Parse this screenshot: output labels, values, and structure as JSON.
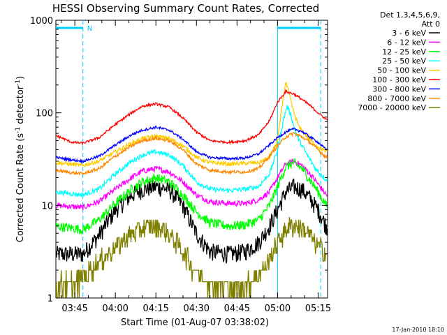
{
  "chart_data": {
    "type": "line",
    "title": "HESSI Observing Summary Count Rates, Corrected",
    "xlabel": "Start Time (01-Aug-07 03:38:02)",
    "ylabel": "Corrected Count Rate (s",
    "ylabel_sup1": "-1",
    "ylabel_mid": " detector",
    "ylabel_sup2": "-1",
    "ylabel_end": ")",
    "yscale": "log",
    "ylim": [
      1,
      1000
    ],
    "xlim_minutes": [
      218,
      318.5
    ],
    "x_ticks": [
      {
        "label": "03:45",
        "minutes": 225
      },
      {
        "label": "04:00",
        "minutes": 240
      },
      {
        "label": "04:15",
        "minutes": 255
      },
      {
        "label": "04:30",
        "minutes": 270
      },
      {
        "label": "04:45",
        "minutes": 285
      },
      {
        "label": "05:00",
        "minutes": 300
      },
      {
        "label": "05:15",
        "minutes": 315
      }
    ],
    "y_ticks": [
      {
        "label": "1",
        "value": 1
      },
      {
        "label": "10",
        "value": 10
      },
      {
        "label": "100",
        "value": 100
      },
      {
        "label": "1000",
        "value": 1000
      }
    ],
    "legend_header": [
      "Det 1,3,4,5,6,9,",
      "Att 0"
    ],
    "legend_position": "top-right outside plot",
    "series": [
      {
        "name": "3 - 6 keV",
        "color": "#000000",
        "points": [
          [
            218,
            3.0
          ],
          [
            228,
            3.0
          ],
          [
            234,
            4.8
          ],
          [
            240,
            9
          ],
          [
            246,
            13
          ],
          [
            250,
            15
          ],
          [
            255,
            16
          ],
          [
            260,
            15
          ],
          [
            265,
            10
          ],
          [
            270,
            5
          ],
          [
            275,
            3.2
          ],
          [
            282,
            3.0
          ],
          [
            288,
            3.2
          ],
          [
            293,
            4
          ],
          [
            297,
            6
          ],
          [
            300,
            9
          ],
          [
            303,
            14
          ],
          [
            306,
            16
          ],
          [
            309,
            15
          ],
          [
            312,
            12
          ],
          [
            315,
            9
          ],
          [
            318,
            6
          ]
        ]
      },
      {
        "name": "6 - 12 keV",
        "color": "#ff00ff",
        "points": [
          [
            218,
            10
          ],
          [
            228,
            9.5
          ],
          [
            234,
            11
          ],
          [
            240,
            15
          ],
          [
            246,
            20
          ],
          [
            250,
            23.5
          ],
          [
            255,
            25
          ],
          [
            260,
            23
          ],
          [
            265,
            18
          ],
          [
            270,
            13
          ],
          [
            275,
            11
          ],
          [
            282,
            10.5
          ],
          [
            288,
            10.5
          ],
          [
            293,
            11.5
          ],
          [
            297,
            14
          ],
          [
            300,
            20
          ],
          [
            303,
            28
          ],
          [
            306,
            30
          ],
          [
            309,
            27
          ],
          [
            312,
            22
          ],
          [
            315,
            17
          ],
          [
            318,
            13
          ]
        ]
      },
      {
        "name": "12 - 25 keV",
        "color": "#00ff00",
        "points": [
          [
            218,
            6
          ],
          [
            228,
            5.5
          ],
          [
            234,
            7
          ],
          [
            240,
            10.5
          ],
          [
            246,
            15
          ],
          [
            250,
            18
          ],
          [
            255,
            20
          ],
          [
            260,
            18
          ],
          [
            265,
            13
          ],
          [
            270,
            8.5
          ],
          [
            275,
            6.5
          ],
          [
            282,
            6
          ],
          [
            288,
            6.2
          ],
          [
            293,
            7
          ],
          [
            297,
            10
          ],
          [
            300,
            16
          ],
          [
            303,
            26
          ],
          [
            306,
            29
          ],
          [
            309,
            25
          ],
          [
            312,
            19
          ],
          [
            315,
            14
          ],
          [
            318,
            10
          ]
        ]
      },
      {
        "name": "25 - 50 keV",
        "color": "#00ffff",
        "points": [
          [
            218,
            14
          ],
          [
            228,
            13
          ],
          [
            234,
            15
          ],
          [
            240,
            22
          ],
          [
            246,
            30
          ],
          [
            250,
            35
          ],
          [
            255,
            38
          ],
          [
            260,
            35
          ],
          [
            265,
            27
          ],
          [
            270,
            18
          ],
          [
            275,
            15
          ],
          [
            282,
            14.5
          ],
          [
            288,
            15
          ],
          [
            293,
            16
          ],
          [
            297,
            22
          ],
          [
            300,
            40
          ],
          [
            302,
            80
          ],
          [
            303.5,
            118
          ],
          [
            305,
            95
          ],
          [
            306,
            70
          ],
          [
            308,
            50
          ],
          [
            311,
            35
          ],
          [
            314,
            25
          ],
          [
            318,
            19
          ]
        ]
      },
      {
        "name": "50 - 100 keV",
        "color": "#ffcc00",
        "points": [
          [
            218,
            29
          ],
          [
            228,
            27
          ],
          [
            234,
            30
          ],
          [
            240,
            38
          ],
          [
            246,
            47
          ],
          [
            250,
            53
          ],
          [
            255,
            56
          ],
          [
            260,
            53
          ],
          [
            265,
            44
          ],
          [
            270,
            33
          ],
          [
            275,
            29
          ],
          [
            282,
            28
          ],
          [
            288,
            28.5
          ],
          [
            293,
            29
          ],
          [
            297,
            33
          ],
          [
            300,
            50
          ],
          [
            302,
            140
          ],
          [
            303,
            210
          ],
          [
            304,
            175
          ],
          [
            306,
            100
          ],
          [
            308,
            70
          ],
          [
            311,
            55
          ],
          [
            314,
            45
          ],
          [
            318,
            38
          ]
        ]
      },
      {
        "name": "100 - 300 keV",
        "color": "#ff0000",
        "points": [
          [
            218,
            57
          ],
          [
            224,
            48
          ],
          [
            228,
            47
          ],
          [
            234,
            54
          ],
          [
            240,
            75
          ],
          [
            246,
            100
          ],
          [
            250,
            118
          ],
          [
            255,
            125
          ],
          [
            260,
            115
          ],
          [
            265,
            88
          ],
          [
            270,
            62
          ],
          [
            275,
            50
          ],
          [
            282,
            48
          ],
          [
            288,
            50
          ],
          [
            293,
            58
          ],
          [
            297,
            82
          ],
          [
            300,
            130
          ],
          [
            303,
            170
          ],
          [
            306,
            160
          ],
          [
            309,
            140
          ],
          [
            312,
            120
          ],
          [
            315,
            100
          ],
          [
            318,
            85
          ]
        ]
      },
      {
        "name": "300 - 800 keV",
        "color": "#0000ff",
        "points": [
          [
            218,
            33
          ],
          [
            224,
            31
          ],
          [
            228,
            30
          ],
          [
            234,
            34
          ],
          [
            240,
            45
          ],
          [
            246,
            58
          ],
          [
            250,
            65
          ],
          [
            255,
            70
          ],
          [
            260,
            65
          ],
          [
            265,
            52
          ],
          [
            270,
            38
          ],
          [
            275,
            33
          ],
          [
            282,
            32
          ],
          [
            288,
            32.5
          ],
          [
            293,
            36
          ],
          [
            297,
            45
          ],
          [
            300,
            54
          ],
          [
            303,
            62
          ],
          [
            306,
            67
          ],
          [
            309,
            63
          ],
          [
            312,
            55
          ],
          [
            315,
            48
          ],
          [
            318,
            40
          ]
        ]
      },
      {
        "name": "800 - 7000 keV",
        "color": "#ff8800",
        "points": [
          [
            218,
            24
          ],
          [
            224,
            22.5
          ],
          [
            228,
            22
          ],
          [
            234,
            25
          ],
          [
            240,
            34
          ],
          [
            246,
            44
          ],
          [
            250,
            50
          ],
          [
            255,
            53
          ],
          [
            260,
            50
          ],
          [
            265,
            40
          ],
          [
            270,
            28
          ],
          [
            275,
            24
          ],
          [
            282,
            23
          ],
          [
            288,
            23
          ],
          [
            293,
            25
          ],
          [
            297,
            34
          ],
          [
            300,
            44
          ],
          [
            303,
            55
          ],
          [
            306,
            60
          ],
          [
            309,
            55
          ],
          [
            312,
            48
          ],
          [
            315,
            40
          ],
          [
            318,
            33
          ]
        ]
      },
      {
        "name": "7000 - 20000 keV",
        "color": "#808000",
        "points": [
          [
            218,
            1.4
          ],
          [
            226,
            1.5
          ],
          [
            232,
            2.2
          ],
          [
            238,
            3.2
          ],
          [
            244,
            4.5
          ],
          [
            249,
            5.5
          ],
          [
            254,
            6
          ],
          [
            258,
            5.5
          ],
          [
            262,
            4.2
          ],
          [
            266,
            3
          ],
          [
            270,
            1.9
          ],
          [
            276,
            1.4
          ],
          [
            282,
            1.3
          ],
          [
            288,
            1.4
          ],
          [
            294,
            1.9
          ],
          [
            298,
            3
          ],
          [
            301,
            4.5
          ],
          [
            304,
            6
          ],
          [
            307,
            6
          ],
          [
            310,
            5.5
          ],
          [
            314,
            4
          ],
          [
            318,
            3
          ]
        ]
      }
    ],
    "annotations": {
      "attenuator_bars": [
        [
          218,
          228
        ],
        [
          300,
          316
        ]
      ],
      "night_marker": "N",
      "date_stamp": "17-Jan-2010 18:10"
    }
  }
}
